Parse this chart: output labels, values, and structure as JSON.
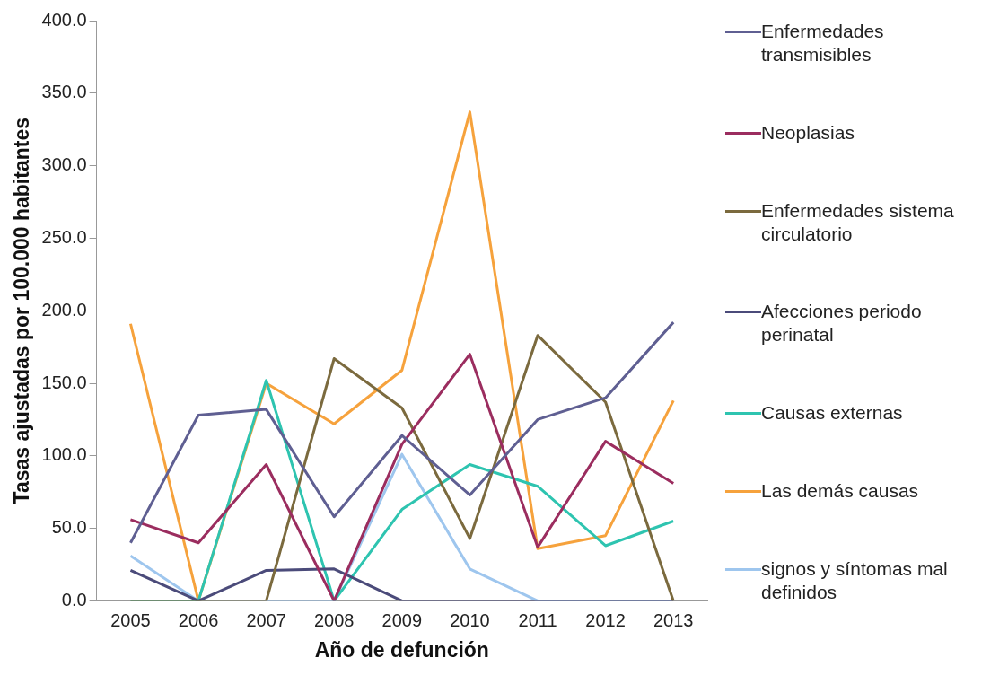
{
  "chart_data": {
    "type": "line",
    "xlabel": "Año de defunción",
    "ylabel": "Tasas ajustadas por 100.000 habitantes",
    "categories": [
      "2005",
      "2006",
      "2007",
      "2008",
      "2009",
      "2010",
      "2011",
      "2012",
      "2013"
    ],
    "ylim": [
      0,
      400
    ],
    "yticks": [
      {
        "value": 0,
        "label": "0.0"
      },
      {
        "value": 50,
        "label": "50.0"
      },
      {
        "value": 100,
        "label": "100.0"
      },
      {
        "value": 150,
        "label": "150.0"
      },
      {
        "value": 200,
        "label": "200.0"
      },
      {
        "value": 250,
        "label": "250.0"
      },
      {
        "value": 300,
        "label": "300.0"
      },
      {
        "value": 350,
        "label": "350.0"
      },
      {
        "value": 400,
        "label": "400.0"
      }
    ],
    "grid": false,
    "legend": "right",
    "marker": "none",
    "series": [
      {
        "name": "Enfermedades transmisibles",
        "color": "#5f5f92",
        "values": [
          40,
          128,
          132,
          58,
          114,
          73,
          125,
          140,
          192
        ]
      },
      {
        "name": "Neoplasias",
        "color": "#9b2d5f",
        "values": [
          56,
          40,
          94,
          0,
          108,
          170,
          37,
          110,
          81
        ]
      },
      {
        "name": "Enfermedades sistema circulatorio",
        "color": "#7b6a3e",
        "values": [
          0,
          0,
          0,
          167,
          133,
          43,
          183,
          137,
          0
        ]
      },
      {
        "name": "Afecciones periodo perinatal",
        "color": "#4b4b7a",
        "values": [
          21,
          0,
          21,
          22,
          0,
          0,
          0,
          0,
          0
        ]
      },
      {
        "name": "Causas externas",
        "color": "#2ec4b0",
        "values": [
          0,
          0,
          152,
          0,
          63,
          94,
          79,
          38,
          55
        ]
      },
      {
        "name": "Las demás causas",
        "color": "#f6a23c",
        "values": [
          191,
          0,
          150,
          122,
          159,
          337,
          36,
          45,
          138
        ]
      },
      {
        "name": "signos y síntomas mal definidos",
        "color": "#9ec6ee",
        "values": [
          31,
          0,
          0,
          0,
          101,
          22,
          0,
          0,
          0
        ]
      }
    ]
  }
}
